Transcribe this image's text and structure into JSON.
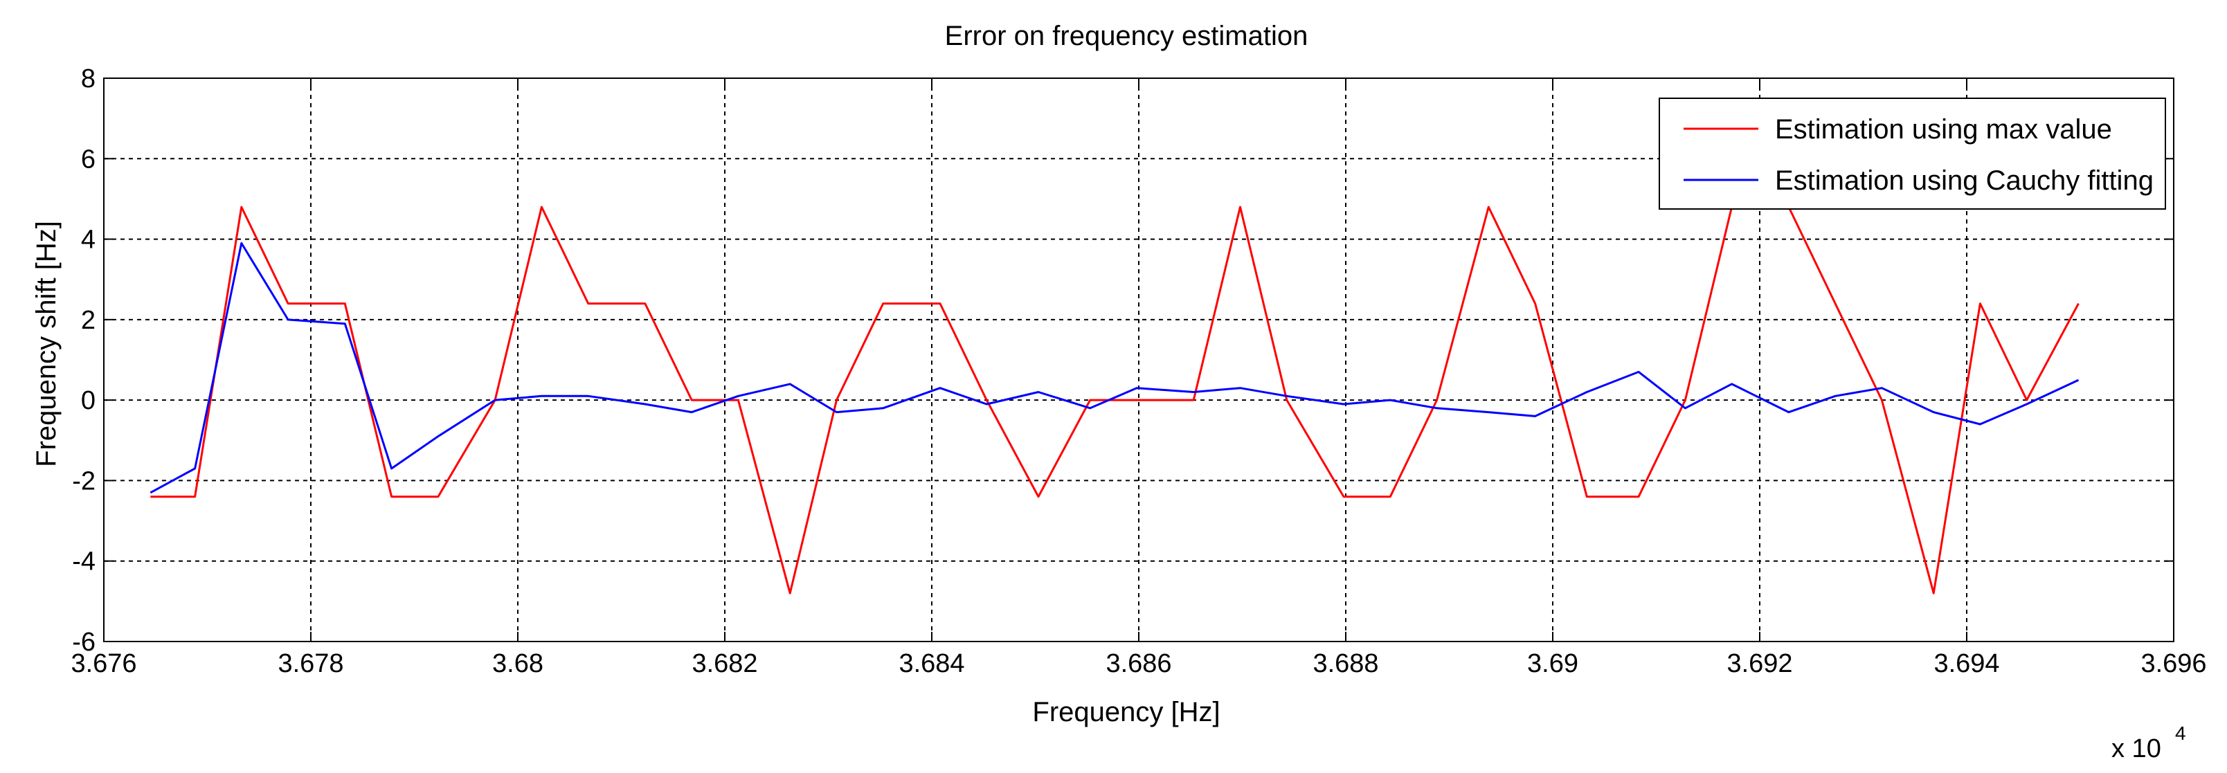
{
  "chart_data": {
    "type": "line",
    "title": "Error on frequency estimation",
    "xlabel": "Frequency [Hz]",
    "ylabel": "Frequency shift [Hz]",
    "x_exponent_label": "x 10",
    "x_exponent_power": "4",
    "xlim": [
      3.676,
      3.696
    ],
    "ylim": [
      -6,
      8
    ],
    "x_ticks": [
      3.676,
      3.678,
      3.68,
      3.682,
      3.684,
      3.686,
      3.688,
      3.69,
      3.692,
      3.694,
      3.696
    ],
    "x_tick_labels": [
      "3.676",
      "3.678",
      "3.68",
      "3.682",
      "3.684",
      "3.686",
      "3.688",
      "3.69",
      "3.692",
      "3.694",
      "3.696"
    ],
    "y_ticks": [
      -6,
      -4,
      -2,
      0,
      2,
      4,
      6,
      8
    ],
    "y_tick_labels": [
      "-6",
      "-4",
      "-2",
      "0",
      "2",
      "4",
      "6",
      "8"
    ],
    "grid": true,
    "legend_position": "top-right",
    "series": [
      {
        "name": "Estimation using max value",
        "color": "#ff0000",
        "x": [
          3.67645,
          3.67688,
          3.67733,
          3.67778,
          3.67833,
          3.67878,
          3.67923,
          3.67978,
          3.68023,
          3.68068,
          3.68123,
          3.68168,
          3.68213,
          3.68263,
          3.68308,
          3.68353,
          3.68408,
          3.68453,
          3.68503,
          3.68553,
          3.68598,
          3.68653,
          3.68698,
          3.68743,
          3.68798,
          3.68843,
          3.68888,
          3.68938,
          3.68983,
          3.69033,
          3.69083,
          3.69128,
          3.69173,
          3.69228,
          3.69273,
          3.69318,
          3.69368,
          3.69413,
          3.69458,
          3.69508
        ],
        "y": [
          -2.4,
          -2.4,
          4.8,
          2.4,
          2.4,
          -2.4,
          -2.4,
          0,
          4.8,
          2.4,
          2.4,
          0,
          0,
          -4.8,
          0,
          2.4,
          2.4,
          0,
          -2.4,
          0,
          0,
          0,
          4.8,
          0,
          -2.4,
          -2.4,
          0,
          4.8,
          2.4,
          -2.4,
          -2.4,
          0,
          4.8,
          4.8,
          2.4,
          0,
          -4.8,
          2.4,
          0,
          2.4
        ]
      },
      {
        "name": "Estimation using Cauchy fitting",
        "color": "#0000ff",
        "x": [
          3.67645,
          3.67688,
          3.67733,
          3.67778,
          3.67833,
          3.67878,
          3.67923,
          3.67978,
          3.68023,
          3.68068,
          3.68123,
          3.68168,
          3.68213,
          3.68263,
          3.68308,
          3.68353,
          3.68408,
          3.68453,
          3.68503,
          3.68553,
          3.68598,
          3.68653,
          3.68698,
          3.68743,
          3.68798,
          3.68843,
          3.68888,
          3.68938,
          3.68983,
          3.69033,
          3.69083,
          3.69128,
          3.69173,
          3.69228,
          3.69273,
          3.69318,
          3.69368,
          3.69413,
          3.69458,
          3.69508
        ],
        "y": [
          -2.3,
          -1.7,
          3.9,
          2.0,
          1.9,
          -1.7,
          -0.9,
          0,
          0.1,
          0.1,
          -0.1,
          -0.3,
          0.1,
          0.4,
          -0.3,
          -0.2,
          0.3,
          -0.1,
          0.2,
          -0.2,
          0.3,
          0.2,
          0.3,
          0.1,
          -0.1,
          0,
          -0.2,
          -0.3,
          -0.4,
          0.2,
          0.7,
          -0.2,
          0.4,
          -0.3,
          0.1,
          0.3,
          -0.3,
          -0.6,
          -0.1,
          0.5
        ]
      }
    ]
  }
}
